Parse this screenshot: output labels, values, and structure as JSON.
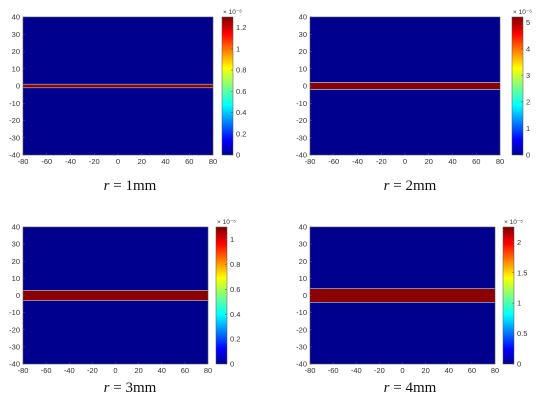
{
  "panels": [
    {
      "caption": {
        "var": "r",
        "eq": " = ",
        "num": "1",
        "unit": "mm"
      },
      "multiplier": "× 10⁻⁶",
      "x_ticks": [
        "-80",
        "-60",
        "-40",
        "-20",
        "0",
        "20",
        "40",
        "60",
        "80"
      ],
      "y_ticks": [
        "40",
        "30",
        "20",
        "10",
        "0",
        "-10",
        "-20",
        "-30",
        "-40"
      ],
      "cb_ticks": [
        "1.2",
        "1",
        "0.8",
        "0.6",
        "0.4",
        "0.2",
        "0"
      ]
    },
    {
      "caption": {
        "var": "r",
        "eq": " = ",
        "num": "2",
        "unit": "mm"
      },
      "multiplier": "× 10⁻⁶",
      "x_ticks": [
        "-80",
        "-60",
        "-40",
        "-20",
        "0",
        "20",
        "40",
        "60",
        "80"
      ],
      "y_ticks": [
        "40",
        "30",
        "20",
        "10",
        "0",
        "-10",
        "-20",
        "-30",
        "-40"
      ],
      "cb_ticks": [
        "5",
        "4",
        "3",
        "2",
        "1",
        "0"
      ]
    },
    {
      "caption": {
        "var": "r",
        "eq": " = ",
        "num": "3",
        "unit": "mm"
      },
      "multiplier": "× 10⁻⁵",
      "x_ticks": [
        "-80",
        "-60",
        "-40",
        "-20",
        "0",
        "20",
        "40",
        "60",
        "80"
      ],
      "y_ticks": [
        "40",
        "30",
        "20",
        "10",
        "0",
        "-10",
        "-20",
        "-30",
        "-40"
      ],
      "cb_ticks": [
        "1",
        "0.8",
        "0.6",
        "0.4",
        "0.2",
        "0"
      ]
    },
    {
      "caption": {
        "var": "r",
        "eq": " = ",
        "num": "4",
        "unit": "mm"
      },
      "multiplier": "× 10⁻⁵",
      "x_ticks": [
        "-80",
        "-60",
        "-40",
        "-20",
        "0",
        "20",
        "40",
        "60",
        "80"
      ],
      "y_ticks": [
        "40",
        "30",
        "20",
        "10",
        "0",
        "-10",
        "-20",
        "-30",
        "-40"
      ],
      "cb_ticks": [
        "2",
        "1.5",
        "1",
        "0.5",
        "0"
      ]
    }
  ],
  "chart_data": [
    {
      "type": "heatmap",
      "colormap": "jet",
      "background_color": "#00008f",
      "band_color": "#8b0000",
      "xlim": [
        -80,
        80
      ],
      "ylim": [
        -40,
        40
      ],
      "band": {
        "y_min": -1,
        "y_max": 1
      },
      "colorbar": {
        "min": 0,
        "max": 1.3e-06,
        "ticks": [
          0,
          0.2,
          0.4,
          0.6,
          0.8,
          1,
          1.2
        ],
        "scale": 1e-06
      }
    },
    {
      "type": "heatmap",
      "colormap": "jet",
      "background_color": "#00008f",
      "band_color": "#8b0000",
      "xlim": [
        -80,
        80
      ],
      "ylim": [
        -40,
        40
      ],
      "band": {
        "y_min": -2,
        "y_max": 2
      },
      "colorbar": {
        "min": 0,
        "max": 5.2e-06,
        "ticks": [
          0,
          1,
          2,
          3,
          4,
          5
        ],
        "scale": 1e-06
      }
    },
    {
      "type": "heatmap",
      "colormap": "jet",
      "background_color": "#00008f",
      "band_color": "#8b0000",
      "xlim": [
        -80,
        80
      ],
      "ylim": [
        -40,
        40
      ],
      "band": {
        "y_min": -3,
        "y_max": 3
      },
      "colorbar": {
        "min": 0,
        "max": 1.1e-05,
        "ticks": [
          0,
          0.2,
          0.4,
          0.6,
          0.8,
          1
        ],
        "scale": 1e-05
      }
    },
    {
      "type": "heatmap",
      "colormap": "jet",
      "background_color": "#00008f",
      "band_color": "#8b0000",
      "xlim": [
        -80,
        80
      ],
      "ylim": [
        -40,
        40
      ],
      "band": {
        "y_min": -4,
        "y_max": 4
      },
      "colorbar": {
        "min": 0,
        "max": 2.25e-05,
        "ticks": [
          0,
          0.5,
          1,
          1.5,
          2
        ],
        "scale": 1e-05
      }
    }
  ]
}
